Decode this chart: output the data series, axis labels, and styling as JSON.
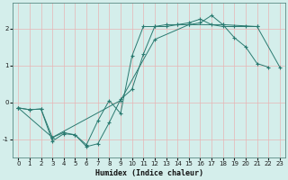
{
  "xlabel": "Humidex (Indice chaleur)",
  "bg_color": "#d4eeeb",
  "grid_color": "#e8b4b4",
  "line_color": "#2a7a70",
  "xlim": [
    -0.5,
    23.5
  ],
  "ylim": [
    -1.5,
    2.7
  ],
  "xticks": [
    0,
    1,
    2,
    3,
    4,
    5,
    6,
    7,
    8,
    9,
    10,
    11,
    12,
    13,
    14,
    15,
    16,
    17,
    18,
    19,
    20,
    21,
    22,
    23
  ],
  "yticks": [
    -1,
    0,
    1,
    2
  ],
  "line1_x": [
    0,
    1,
    2,
    3,
    4,
    5,
    6,
    7,
    8,
    9,
    10,
    11,
    12,
    13,
    14,
    15,
    16,
    17,
    18,
    19,
    20,
    21
  ],
  "line1_y": [
    -0.15,
    -0.2,
    -0.18,
    -1.05,
    -0.85,
    -0.88,
    -1.15,
    -0.5,
    0.05,
    -0.3,
    1.25,
    2.05,
    2.05,
    2.1,
    2.1,
    2.15,
    2.25,
    2.1,
    2.05,
    2.05,
    2.05,
    2.05
  ],
  "line2_x": [
    0,
    1,
    2,
    3,
    4,
    5,
    6,
    7,
    8,
    9,
    10,
    11,
    12,
    13,
    14,
    15,
    16,
    17,
    18,
    19,
    20,
    21,
    22
  ],
  "line2_y": [
    -0.15,
    -0.2,
    -0.18,
    -0.95,
    -0.82,
    -0.88,
    -1.2,
    -1.12,
    -0.55,
    0.08,
    0.35,
    1.3,
    2.05,
    2.05,
    2.1,
    2.1,
    2.15,
    2.35,
    2.1,
    1.75,
    1.5,
    1.05,
    0.95
  ],
  "line3_x": [
    0,
    3,
    9,
    12,
    15,
    18,
    21,
    23
  ],
  "line3_y": [
    -0.15,
    -0.95,
    0.05,
    1.7,
    2.1,
    2.1,
    2.05,
    0.95
  ],
  "figsize": [
    3.2,
    2.0
  ],
  "dpi": 100
}
